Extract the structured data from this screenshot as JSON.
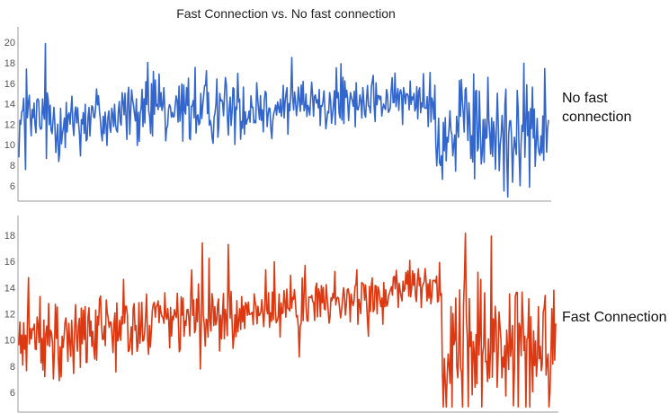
{
  "chart_data": [
    {
      "type": "line",
      "title": "Fast Connection vs. No fast connection",
      "legend_label": "No fast connection",
      "legend_position": "right",
      "color": "#3366cc",
      "ylim": [
        4.5,
        21.5
      ],
      "yticks": [
        "6",
        "8",
        "10",
        "12",
        "14",
        "16",
        "18",
        "20"
      ],
      "points": 560,
      "segments": [
        {
          "n": 440,
          "start_mean": 12.3,
          "end_mean": 14.5,
          "start_amp": 3.2,
          "end_amp": 1.6
        },
        {
          "n": 120,
          "start_mean": 11.2,
          "end_mean": 11.2,
          "start_amp": 4.6,
          "end_amp": 4.6
        }
      ],
      "grid": false
    },
    {
      "type": "line",
      "legend_label": "Fast Connection",
      "legend_position": "right",
      "color": "#dc3912",
      "ylim": [
        4.5,
        19.5
      ],
      "yticks": [
        "6",
        "8",
        "10",
        "12",
        "14",
        "16",
        "18"
      ],
      "points": 560,
      "segments": [
        {
          "n": 440,
          "start_mean": 10.0,
          "end_mean": 14.0,
          "start_amp": 2.6,
          "end_amp": 1.4
        },
        {
          "n": 120,
          "start_mean": 9.5,
          "end_mean": 9.5,
          "start_amp": 4.4,
          "end_amp": 4.4
        }
      ],
      "grid": false
    }
  ]
}
